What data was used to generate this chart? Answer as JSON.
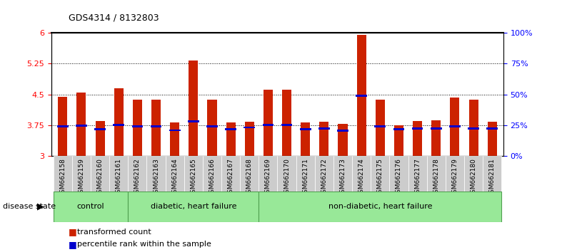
{
  "title": "GDS4314 / 8132803",
  "samples": [
    "GSM662158",
    "GSM662159",
    "GSM662160",
    "GSM662161",
    "GSM662162",
    "GSM662163",
    "GSM662164",
    "GSM662165",
    "GSM662166",
    "GSM662167",
    "GSM662168",
    "GSM662169",
    "GSM662170",
    "GSM662171",
    "GSM662172",
    "GSM662173",
    "GSM662174",
    "GSM662175",
    "GSM662176",
    "GSM662177",
    "GSM662178",
    "GSM662179",
    "GSM662180",
    "GSM662181"
  ],
  "bar_heights": [
    4.45,
    4.55,
    3.85,
    4.65,
    4.38,
    4.38,
    3.82,
    5.32,
    4.38,
    3.82,
    3.83,
    4.62,
    4.62,
    3.82,
    3.83,
    3.78,
    5.95,
    4.38,
    3.75,
    3.85,
    3.88,
    4.42,
    4.38,
    3.83
  ],
  "percentile_values": [
    3.72,
    3.75,
    3.65,
    3.76,
    3.72,
    3.72,
    3.63,
    3.84,
    3.72,
    3.65,
    3.7,
    3.76,
    3.76,
    3.65,
    3.67,
    3.62,
    4.47,
    3.72,
    3.65,
    3.67,
    3.67,
    3.72,
    3.68,
    3.68
  ],
  "bar_color": "#CC2200",
  "percentile_color": "#0000CC",
  "ymin": 3.0,
  "ymax": 6.0,
  "yticks": [
    3.0,
    3.75,
    4.5,
    5.25,
    6.0
  ],
  "ytick_labels": [
    "3",
    "3.75",
    "4.5",
    "5.25",
    "6"
  ],
  "right_yticks": [
    0,
    25,
    50,
    75,
    100
  ],
  "right_ytick_labels": [
    "0%",
    "25%",
    "50%",
    "75%",
    "100%"
  ],
  "dotted_lines": [
    3.75,
    4.5,
    5.25
  ],
  "groups": [
    {
      "label": "control",
      "start": 0,
      "end": 4,
      "color": "#90EE90"
    },
    {
      "label": "diabetic, heart failure",
      "start": 4,
      "end": 11,
      "color": "#90EE90"
    },
    {
      "label": "non-diabetic, heart failure",
      "start": 11,
      "end": 24,
      "color": "#90EE90"
    }
  ],
  "group_colors": [
    "#b8e8b8",
    "#c8f0c8",
    "#a8e8a8"
  ],
  "bar_width": 0.5,
  "bg_color": "#f0f0f0",
  "legend_items": [
    {
      "color": "#CC2200",
      "label": "transformed count"
    },
    {
      "color": "#0000CC",
      "label": "percentile rank within the sample"
    }
  ]
}
